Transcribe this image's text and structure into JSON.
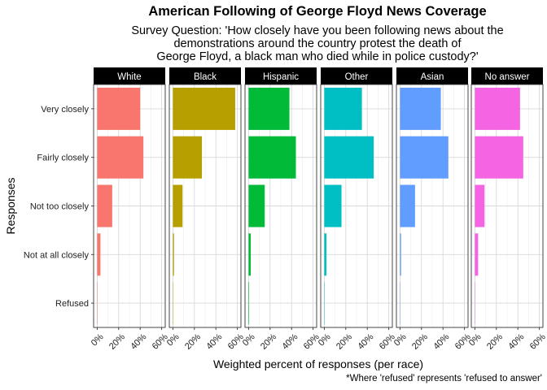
{
  "title": "American Following of George Floyd News Coverage",
  "subtitle_lines": [
    "Survey Question: 'How closely have you been following news about the",
    "demonstrations around the country protest the death of",
    "George Floyd, a black man who died while in police custody?'"
  ],
  "caption": "*Where 'refused' represents 'refused to answer'",
  "chart_data": {
    "type": "bar",
    "orientation": "horizontal",
    "faceted_by": "race",
    "xlabel": "Weighted percent of responses (per race)",
    "ylabel": "Responses",
    "xlim": [
      0,
      60
    ],
    "x_ticks": [
      "0%",
      "20%",
      "40%",
      "60%"
    ],
    "x_tick_values": [
      0,
      20,
      40,
      60
    ],
    "grid": true,
    "categories": [
      "Very closely",
      "Fairly closely",
      "Not too closely",
      "Not at all closely",
      "Refused"
    ],
    "panels": [
      {
        "name": "White",
        "color": "#F8766D",
        "values": [
          40,
          43,
          14,
          3,
          0.3
        ]
      },
      {
        "name": "Black",
        "color": "#B79F00",
        "values": [
          58,
          27,
          9,
          1,
          0.3
        ]
      },
      {
        "name": "Hispanic",
        "color": "#00BA38",
        "values": [
          38,
          44,
          15,
          2,
          0.5
        ]
      },
      {
        "name": "Other",
        "color": "#00BFC4",
        "values": [
          35,
          46,
          16,
          2,
          0.2
        ]
      },
      {
        "name": "Asian",
        "color": "#619CFF",
        "values": [
          38,
          45,
          14,
          1,
          0.2
        ]
      },
      {
        "name": "No answer",
        "color": "#F564E3",
        "values": [
          42,
          45,
          9,
          3,
          0.1
        ]
      }
    ]
  }
}
